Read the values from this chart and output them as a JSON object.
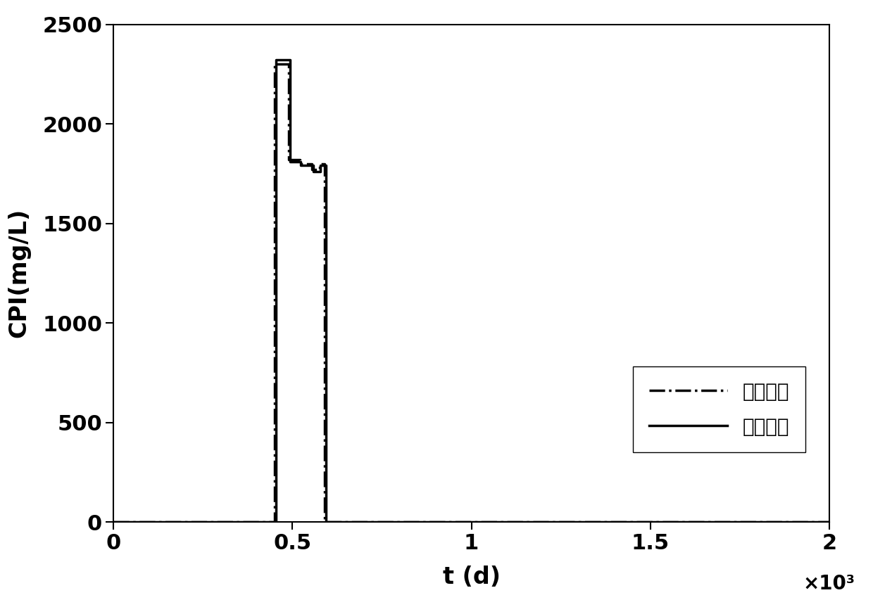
{
  "title": "",
  "xlabel": "t (d)",
  "ylabel": "CPI(mg/L)",
  "xlim": [
    0,
    2000
  ],
  "ylim": [
    0,
    2500
  ],
  "xticks": [
    0,
    500,
    1000,
    1500,
    2000
  ],
  "xtick_labels": [
    "0",
    "0.5",
    "1",
    "1.5",
    "2"
  ],
  "yticks": [
    0,
    500,
    1000,
    1500,
    2000,
    2500
  ],
  "x_scale_label": "×10³",
  "line1_label": "数模方案",
  "line2_label": "动态规划",
  "line1_style": "-.",
  "line2_style": "-",
  "line_color": "#000000",
  "line_width": 2.5,
  "background_color": "#ffffff",
  "series1_x": [
    0,
    450,
    450,
    490,
    490,
    520,
    520,
    555,
    555,
    575,
    575,
    590,
    590,
    2000
  ],
  "series1_y": [
    0,
    0,
    2300,
    2300,
    1820,
    1820,
    1800,
    1800,
    1770,
    1770,
    1800,
    1800,
    0,
    0
  ],
  "series2_x": [
    0,
    453,
    453,
    493,
    493,
    523,
    523,
    558,
    558,
    578,
    578,
    593,
    593,
    2000
  ],
  "series2_y": [
    0,
    0,
    2320,
    2320,
    1810,
    1810,
    1790,
    1790,
    1760,
    1760,
    1790,
    1790,
    0,
    0
  ]
}
